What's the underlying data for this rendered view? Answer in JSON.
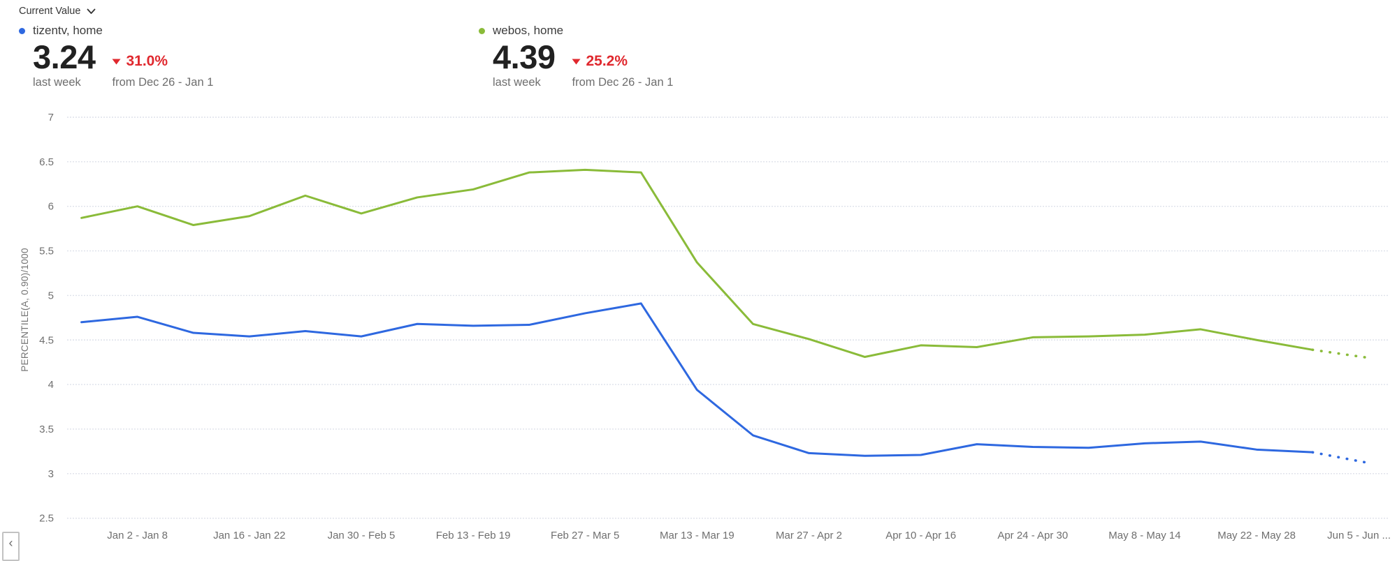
{
  "controls": {
    "metric_selector_label": "Current Value"
  },
  "colors": {
    "negative": "#e0282e",
    "blue_series": "#2e68e0",
    "green_series": "#8abb39",
    "axis_text": "#6f6f6f",
    "grid": "#dee1ea"
  },
  "kpis": [
    {
      "id": "tizentv-home",
      "series": "tizentv, home",
      "color": "#2e68e0",
      "value": "3.24",
      "period": "last week",
      "change": "31.0%",
      "change_direction": "down",
      "comparison": "from Dec 26 - Jan 1"
    },
    {
      "id": "webos-home",
      "series": "webos, home",
      "color": "#8abb39",
      "value": "4.39",
      "period": "last week",
      "change": "25.2%",
      "change_direction": "down",
      "comparison": "from Dec 26 - Jan 1"
    }
  ],
  "pagination": {
    "prev_icon": "‹"
  },
  "chart_data": {
    "type": "line",
    "title": "",
    "xlabel": "",
    "ylabel": "PERCENTILE(A, 0.90)/1000",
    "ylim": [
      2.5,
      7
    ],
    "yticks": [
      7,
      6.5,
      6,
      5.5,
      5,
      4.5,
      4,
      3.5,
      3,
      2.5
    ],
    "grid": "horizontal-dotted",
    "legend_position": "top-left",
    "n_points": 24,
    "x_tick_step": "weekly points, labels every 2 weeks",
    "x_ticks": [
      {
        "index": 1,
        "label": "Jan 2 - Jan 8"
      },
      {
        "index": 3,
        "label": "Jan 16 - Jan 22"
      },
      {
        "index": 5,
        "label": "Jan 30 - Feb 5"
      },
      {
        "index": 7,
        "label": "Feb 13 - Feb 19"
      },
      {
        "index": 9,
        "label": "Feb 27 - Mar 5"
      },
      {
        "index": 11,
        "label": "Mar 13 - Mar 19"
      },
      {
        "index": 13,
        "label": "Mar 27 - Apr 2"
      },
      {
        "index": 15,
        "label": "Apr 10 - Apr 16"
      },
      {
        "index": 17,
        "label": "Apr 24 - Apr 30"
      },
      {
        "index": 19,
        "label": "May 8 - May 14"
      },
      {
        "index": 21,
        "label": "May 22 - May 28"
      },
      {
        "index": 23,
        "label": "Jun 5 - Jun ...",
        "anchor": "end",
        "anchor_x": 1990
      }
    ],
    "series": [
      {
        "id": "tizentv-home",
        "name": "tizentv, home",
        "color": "#2e68e0",
        "projected_tail_points": 1,
        "values": [
          4.7,
          4.76,
          4.58,
          4.54,
          4.6,
          4.54,
          4.68,
          4.66,
          4.67,
          4.8,
          4.91,
          3.94,
          3.43,
          3.23,
          3.2,
          3.21,
          3.33,
          3.3,
          3.29,
          3.34,
          3.36,
          3.27,
          3.24,
          3.12
        ]
      },
      {
        "id": "webos-home",
        "name": "webos, home",
        "color": "#8abb39",
        "projected_tail_points": 1,
        "values": [
          5.87,
          6.0,
          5.79,
          5.89,
          6.12,
          5.92,
          6.1,
          6.19,
          6.38,
          6.41,
          6.38,
          5.37,
          4.68,
          4.51,
          4.31,
          4.44,
          4.42,
          4.53,
          4.54,
          4.56,
          4.62,
          4.5,
          4.39,
          4.3
        ]
      }
    ]
  }
}
